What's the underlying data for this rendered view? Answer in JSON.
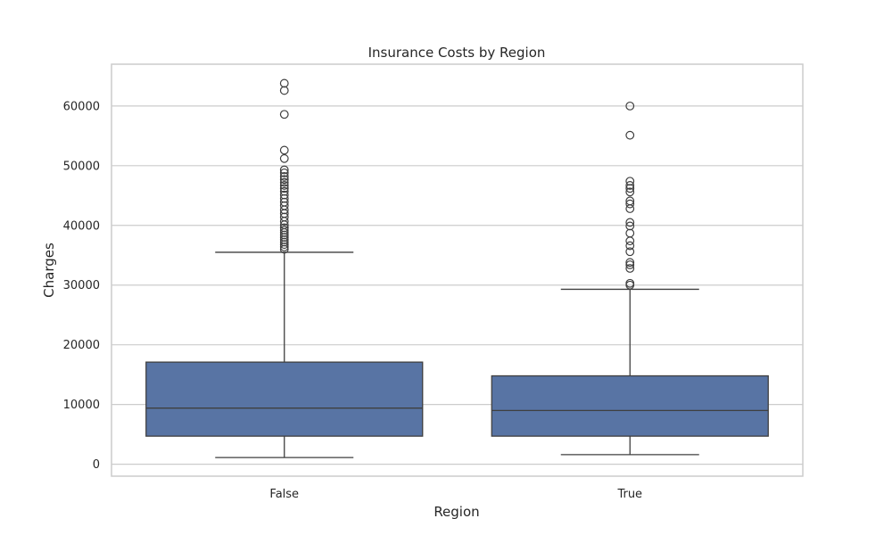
{
  "chart_data": {
    "type": "box",
    "title": "Insurance Costs by Region",
    "xlabel": "Region",
    "ylabel": "Charges",
    "categories": [
      "False",
      "True"
    ],
    "ylim": [
      -2000,
      67000
    ],
    "yticks": [
      0,
      10000,
      20000,
      30000,
      40000,
      50000,
      60000
    ],
    "ytick_labels": [
      "0",
      "10000",
      "20000",
      "30000",
      "40000",
      "50000",
      "60000"
    ],
    "grid": "horizontal",
    "box_color": "#5874a4",
    "line_color": "#3f3f3f",
    "boxes": [
      {
        "category": "False",
        "whisker_low": 1120,
        "q1": 4700,
        "median": 9400,
        "q3": 17100,
        "whisker_high": 35500,
        "outliers": [
          36000,
          36400,
          36800,
          37200,
          37600,
          38000,
          38400,
          38800,
          39200,
          39600,
          40100,
          40700,
          41400,
          42000,
          42600,
          43300,
          43900,
          44500,
          45100,
          45700,
          46200,
          46700,
          47200,
          47700,
          48200,
          48800,
          49300,
          51200,
          52600,
          58600,
          62600,
          63800
        ]
      },
      {
        "category": "True",
        "whisker_low": 1600,
        "q1": 4700,
        "median": 9000,
        "q3": 14800,
        "whisker_high": 29300,
        "outliers": [
          30000,
          30300,
          32800,
          33400,
          33800,
          35600,
          36600,
          37400,
          38700,
          39900,
          40500,
          42800,
          43600,
          44100,
          45600,
          46200,
          46700,
          47400,
          55100,
          60000
        ]
      }
    ]
  }
}
